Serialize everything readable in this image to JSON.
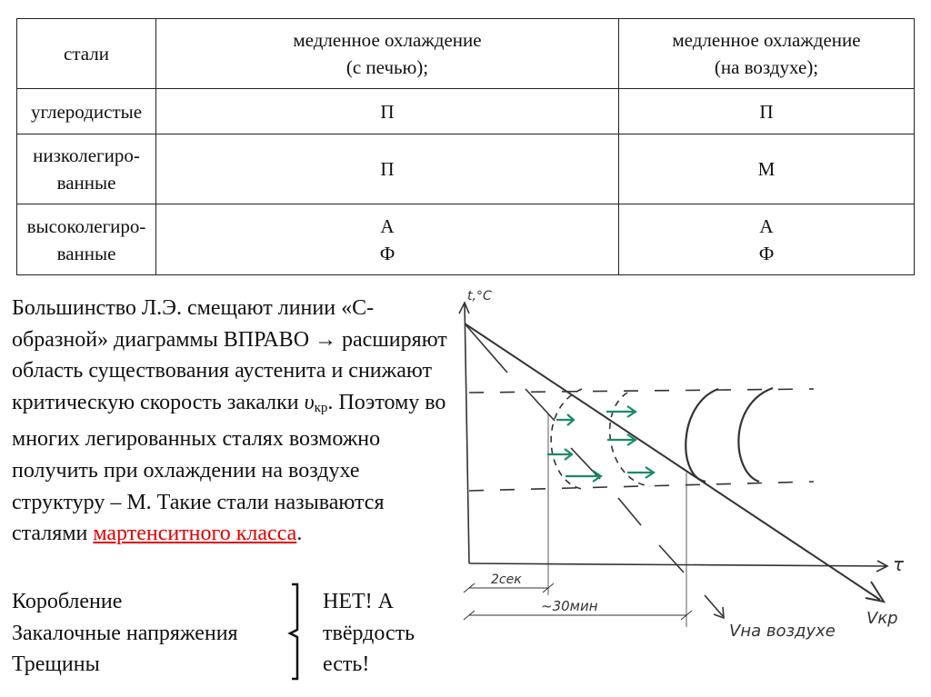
{
  "table": {
    "headers": [
      "стали",
      "медленное охлаждение\n(с печью);",
      "медленное охлаждение\n(на воздухе);"
    ],
    "rows": [
      {
        "steel": "углеродистые",
        "furnace": "П",
        "air": "П"
      },
      {
        "steel": "низколегиро-\nванные",
        "furnace": "П",
        "air": "М"
      },
      {
        "steel": "высоколегиро-\nванные",
        "furnace": "А\nФ",
        "air": "А\nФ"
      }
    ]
  },
  "text": {
    "p1": "Большинство Л.Э. смещают линии «С-образной» диаграммы ВПРАВО → расширяют область существования аустенита и снижают критическую скорость закалки ",
    "v_symbol": "υ",
    "v_sub": "кр",
    "p2": ". Поэтому во многих легированных сталях возможно получить при охлаждении на воздухе структуру – М. Такие стали называются сталями ",
    "highlight": "мартенситного класса",
    "p3": "."
  },
  "defects": [
    "Коробление",
    "Закалочные напряжения",
    "Трещины"
  ],
  "answer": [
    "НЕТ! А",
    "твёрдость",
    "есть!"
  ],
  "diagram": {
    "y_axis": "t,°C",
    "x_axis": "τ",
    "label_2sec": "2сек",
    "label_30min": "~30мин",
    "label_v_air": "Vна воздухе",
    "label_vkr": "Vкр",
    "arrow_color": "#1a8a6a"
  }
}
